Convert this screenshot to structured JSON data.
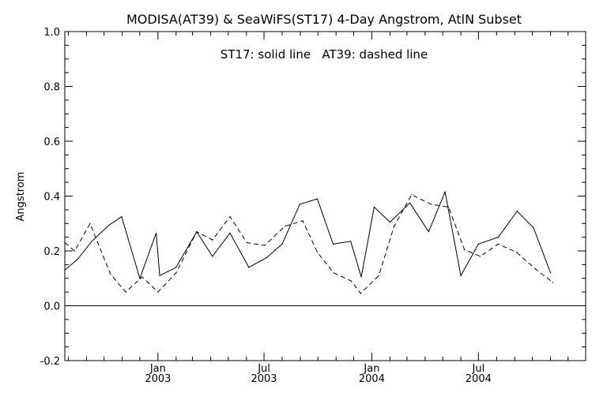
{
  "chart_data": {
    "type": "line",
    "title": "MODISA(AT39) & SeaWiFS(ST17) 4-Day Angstrom, AtlN Subset",
    "annotation": "ST17: solid line   AT39: dashed line",
    "ylabel": "Angstrom",
    "xlabel": "",
    "ylim": [
      -0.2,
      1.0
    ],
    "yticks": [
      {
        "value": -0.2,
        "label": "-0.2"
      },
      {
        "value": 0.0,
        "label": "0.0"
      },
      {
        "value": 0.2,
        "label": "0.2"
      },
      {
        "value": 0.4,
        "label": "0.4"
      },
      {
        "value": 0.6,
        "label": "0.6"
      },
      {
        "value": 0.8,
        "label": "0.8"
      },
      {
        "value": 1.0,
        "label": "1.0"
      }
    ],
    "xlim": [
      "2002-07-26",
      "2004-12-31"
    ],
    "xticks": [
      {
        "date": "2003-01-01",
        "line1": "Jan",
        "line2": "2003"
      },
      {
        "date": "2003-07-01",
        "line1": "Jul",
        "line2": "2003"
      },
      {
        "date": "2004-01-01",
        "line1": "Jan",
        "line2": "2004"
      },
      {
        "date": "2004-07-01",
        "line1": "Jul",
        "line2": "2004"
      }
    ],
    "x_minor_ticks": [
      "2002-08-01",
      "2002-09-01",
      "2002-10-01",
      "2002-11-01",
      "2002-12-01",
      "2003-02-01",
      "2003-03-01",
      "2003-04-01",
      "2003-05-01",
      "2003-06-01",
      "2003-08-01",
      "2003-09-01",
      "2003-10-01",
      "2003-11-01",
      "2003-12-01",
      "2004-02-01",
      "2004-03-01",
      "2004-04-01",
      "2004-05-01",
      "2004-06-01",
      "2004-08-01",
      "2004-09-01",
      "2004-10-01",
      "2004-11-01",
      "2004-12-01"
    ],
    "zero_line": 0.0,
    "series": [
      {
        "name": "ST17",
        "style": "solid",
        "color": "#000000",
        "points": [
          {
            "x": "2002-07-26",
            "y": 0.13
          },
          {
            "x": "2002-08-17",
            "y": 0.17
          },
          {
            "x": "2002-09-10",
            "y": 0.235
          },
          {
            "x": "2002-10-10",
            "y": 0.295
          },
          {
            "x": "2002-10-31",
            "y": 0.325
          },
          {
            "x": "2002-12-01",
            "y": 0.1
          },
          {
            "x": "2002-12-29",
            "y": 0.265
          },
          {
            "x": "2003-01-04",
            "y": 0.11
          },
          {
            "x": "2003-02-01",
            "y": 0.14
          },
          {
            "x": "2003-03-08",
            "y": 0.27
          },
          {
            "x": "2003-04-04",
            "y": 0.18
          },
          {
            "x": "2003-05-04",
            "y": 0.265
          },
          {
            "x": "2003-06-05",
            "y": 0.14
          },
          {
            "x": "2003-07-05",
            "y": 0.175
          },
          {
            "x": "2003-08-01",
            "y": 0.225
          },
          {
            "x": "2003-08-31",
            "y": 0.37
          },
          {
            "x": "2003-09-30",
            "y": 0.39
          },
          {
            "x": "2003-10-27",
            "y": 0.225
          },
          {
            "x": "2003-11-26",
            "y": 0.235
          },
          {
            "x": "2003-12-14",
            "y": 0.105
          },
          {
            "x": "2004-01-05",
            "y": 0.36
          },
          {
            "x": "2004-02-01",
            "y": 0.305
          },
          {
            "x": "2004-03-06",
            "y": 0.375
          },
          {
            "x": "2004-04-07",
            "y": 0.27
          },
          {
            "x": "2004-05-05",
            "y": 0.415
          },
          {
            "x": "2004-06-01",
            "y": 0.11
          },
          {
            "x": "2004-07-01",
            "y": 0.225
          },
          {
            "x": "2004-08-04",
            "y": 0.25
          },
          {
            "x": "2004-09-05",
            "y": 0.345
          },
          {
            "x": "2004-10-03",
            "y": 0.285
          },
          {
            "x": "2004-11-01",
            "y": 0.12
          }
        ]
      },
      {
        "name": "AT39",
        "style": "dashed",
        "color": "#000000",
        "points": [
          {
            "x": "2002-07-26",
            "y": 0.23
          },
          {
            "x": "2002-08-12",
            "y": 0.2
          },
          {
            "x": "2002-09-07",
            "y": 0.3
          },
          {
            "x": "2002-10-12",
            "y": 0.115
          },
          {
            "x": "2002-11-07",
            "y": 0.05
          },
          {
            "x": "2002-12-05",
            "y": 0.105
          },
          {
            "x": "2003-01-01",
            "y": 0.05
          },
          {
            "x": "2003-02-01",
            "y": 0.12
          },
          {
            "x": "2003-03-08",
            "y": 0.27
          },
          {
            "x": "2003-04-04",
            "y": 0.24
          },
          {
            "x": "2003-05-04",
            "y": 0.325
          },
          {
            "x": "2003-06-02",
            "y": 0.23
          },
          {
            "x": "2003-07-02",
            "y": 0.22
          },
          {
            "x": "2003-08-06",
            "y": 0.29
          },
          {
            "x": "2003-09-05",
            "y": 0.31
          },
          {
            "x": "2003-09-30",
            "y": 0.195
          },
          {
            "x": "2003-10-28",
            "y": 0.12
          },
          {
            "x": "2003-11-27",
            "y": 0.09
          },
          {
            "x": "2003-12-13",
            "y": 0.045
          },
          {
            "x": "2004-01-13",
            "y": 0.11
          },
          {
            "x": "2004-02-08",
            "y": 0.29
          },
          {
            "x": "2004-03-09",
            "y": 0.405
          },
          {
            "x": "2004-04-11",
            "y": 0.37
          },
          {
            "x": "2004-05-11",
            "y": 0.36
          },
          {
            "x": "2004-06-07",
            "y": 0.205
          },
          {
            "x": "2004-07-04",
            "y": 0.18
          },
          {
            "x": "2004-08-04",
            "y": 0.225
          },
          {
            "x": "2004-09-04",
            "y": 0.195
          },
          {
            "x": "2004-10-06",
            "y": 0.135
          },
          {
            "x": "2004-11-05",
            "y": 0.085
          }
        ]
      }
    ]
  }
}
